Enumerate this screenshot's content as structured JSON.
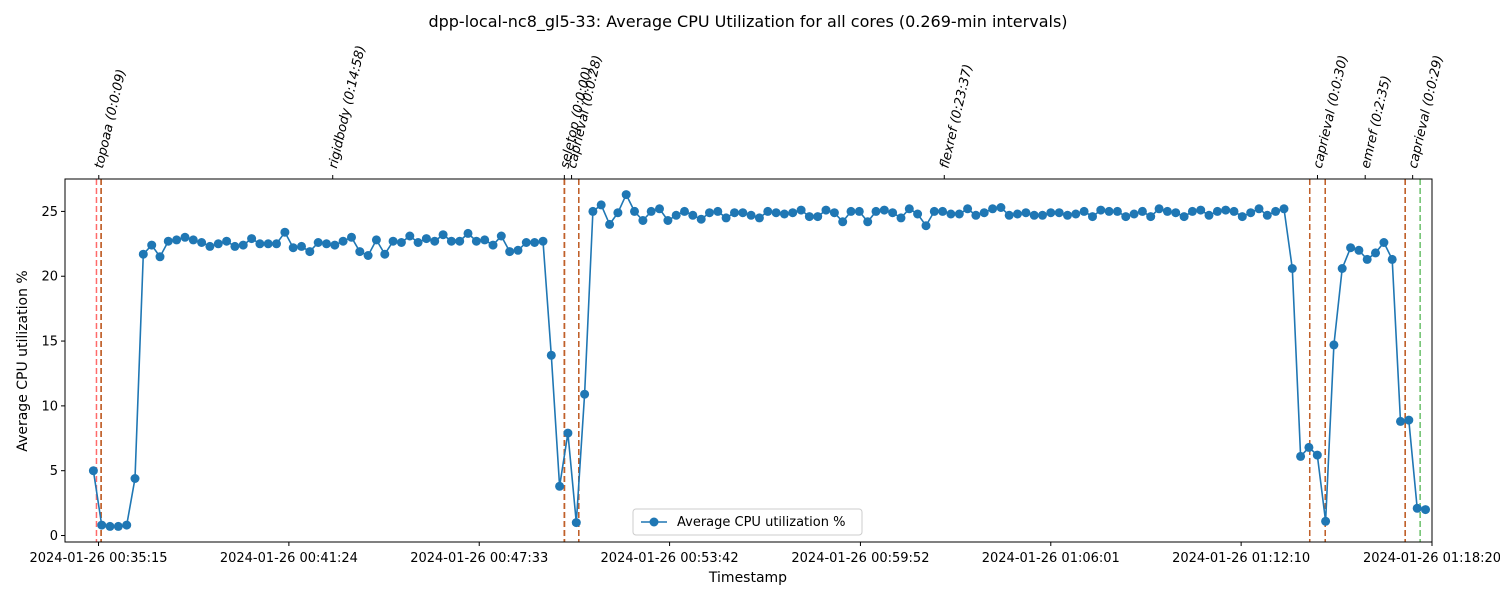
{
  "chart_data": {
    "type": "line",
    "title": "dpp-local-nc8_gl5-33: Average CPU Utilization for all cores (0.269-min intervals)",
    "xlabel": "Timestamp",
    "ylabel": "Average CPU utilization %",
    "ylim": [
      -0.5,
      27.5
    ],
    "yticks": [
      0,
      5,
      10,
      15,
      20,
      25
    ],
    "xlim": [
      "2024-01-26 00:34:10",
      "2024-01-26 01:18:20"
    ],
    "xticks": [
      {
        "t": "2024-01-26 00:35:15",
        "label": "2024-01-26 00:35:15"
      },
      {
        "t": "2024-01-26 00:41:24",
        "label": "2024-01-26 00:41:24"
      },
      {
        "t": "2024-01-26 00:47:33",
        "label": "2024-01-26 00:47:33"
      },
      {
        "t": "2024-01-26 00:53:42",
        "label": "2024-01-26 00:53:42"
      },
      {
        "t": "2024-01-26 00:59:52",
        "label": "2024-01-26 00:59:52"
      },
      {
        "t": "2024-01-26 01:06:01",
        "label": "2024-01-26 01:06:01"
      },
      {
        "t": "2024-01-26 01:12:10",
        "label": "2024-01-26 01:12:10"
      },
      {
        "t": "2024-01-26 01:18:20",
        "label": "2024-01-26 01:18:20"
      }
    ],
    "grid": false,
    "legend_position": "bottom-center",
    "series": [
      {
        "name": "Average CPU utilization %",
        "color": "#1f77b4",
        "marker": "circle",
        "start": "2024-01-26 00:35:05",
        "interval_seconds": 16.14,
        "values": [
          5.0,
          0.8,
          0.7,
          0.7,
          0.8,
          4.4,
          21.7,
          22.4,
          21.5,
          22.7,
          22.8,
          23.0,
          22.8,
          22.6,
          22.3,
          22.5,
          22.7,
          22.3,
          22.4,
          22.9,
          22.5,
          22.5,
          22.5,
          23.4,
          22.2,
          22.3,
          21.9,
          22.6,
          22.5,
          22.4,
          22.7,
          23.0,
          21.9,
          21.6,
          22.8,
          21.7,
          22.7,
          22.6,
          23.1,
          22.6,
          22.9,
          22.7,
          23.2,
          22.7,
          22.7,
          23.3,
          22.7,
          22.8,
          22.4,
          23.1,
          21.9,
          22.0,
          22.6,
          22.6,
          22.7,
          13.9,
          3.8,
          7.9,
          1.0,
          10.9,
          25.0,
          25.5,
          24.0,
          24.9,
          26.3,
          25.0,
          24.3,
          25.0,
          25.2,
          24.3,
          24.7,
          25.0,
          24.7,
          24.4,
          24.9,
          25.0,
          24.5,
          24.9,
          24.9,
          24.7,
          24.5,
          25.0,
          24.9,
          24.8,
          24.9,
          25.1,
          24.6,
          24.6,
          25.1,
          24.9,
          24.2,
          25.0,
          25.0,
          24.2,
          25.0,
          25.1,
          24.9,
          24.5,
          25.2,
          24.8,
          23.9,
          25.0,
          25.0,
          24.8,
          24.8,
          25.2,
          24.7,
          24.9,
          25.2,
          25.3,
          24.7,
          24.8,
          24.9,
          24.7,
          24.7,
          24.9,
          24.9,
          24.7,
          24.8,
          25.0,
          24.6,
          25.1,
          25.0,
          25.0,
          24.6,
          24.8,
          25.0,
          24.6,
          25.2,
          25.0,
          24.9,
          24.6,
          25.0,
          25.1,
          24.7,
          25.0,
          25.1,
          25.0,
          24.6,
          24.9,
          25.2,
          24.7,
          25.0,
          25.2,
          20.6,
          6.1,
          6.8,
          6.2,
          1.1,
          14.7,
          20.6,
          22.2,
          22.0,
          21.3,
          21.8,
          22.6,
          21.3,
          8.8,
          8.9,
          2.1,
          2.0
        ]
      }
    ],
    "stages": [
      {
        "label": "topoaa (0:0:09)",
        "start": "2024-01-26 00:35:11",
        "end": "2024-01-26 00:35:20",
        "start_color": "#ff6b6b",
        "end_color": "#c0602a"
      },
      {
        "label": "rigidbody (0:14:58)",
        "start": "2024-01-26 00:35:20",
        "end": "2024-01-26 00:50:18",
        "start_color": "#c0602a",
        "end_color": "#c0602a"
      },
      {
        "label": "seletop (0:0:00)",
        "start": "2024-01-26 00:50:18",
        "end": "2024-01-26 00:50:18",
        "start_color": "#c0602a",
        "end_color": "#c0602a"
      },
      {
        "label": "caprieval (0:0:28)",
        "start": "2024-01-26 00:50:18",
        "end": "2024-01-26 00:50:46",
        "start_color": "#c0602a",
        "end_color": "#c0602a"
      },
      {
        "label": "flexref (0:23:37)",
        "start": "2024-01-26 00:50:46",
        "end": "2024-01-26 01:14:23",
        "start_color": "#c0602a",
        "end_color": "#c0602a"
      },
      {
        "label": "caprieval (0:0:30)",
        "start": "2024-01-26 01:14:23",
        "end": "2024-01-26 01:14:53",
        "start_color": "#c0602a",
        "end_color": "#c0602a"
      },
      {
        "label": "emref (0:2:35)",
        "start": "2024-01-26 01:14:53",
        "end": "2024-01-26 01:17:28",
        "start_color": "#c0602a",
        "end_color": "#c0602a"
      },
      {
        "label": "caprieval (0:0:29)",
        "start": "2024-01-26 01:17:28",
        "end": "2024-01-26 01:17:57",
        "start_color": "#c0602a",
        "end_color": "#6abf69"
      }
    ]
  }
}
